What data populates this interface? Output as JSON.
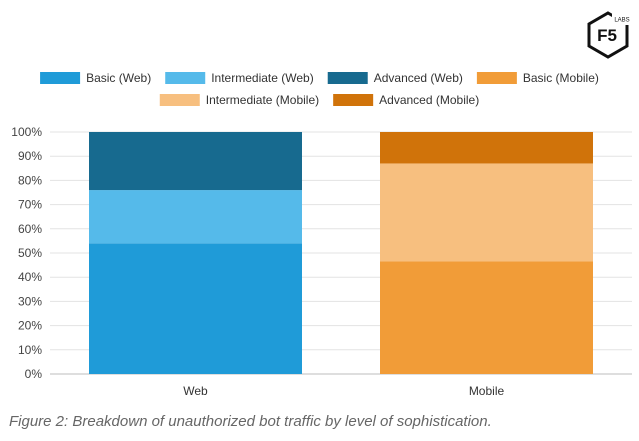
{
  "brand": {
    "logo_text": "F5",
    "logo_subtext": "LABS"
  },
  "chart_data": {
    "type": "bar",
    "stacked": true,
    "title": "",
    "xlabel": "",
    "ylabel": "",
    "ylim": [
      0,
      100
    ],
    "y_ticks": [
      "0%",
      "10%",
      "20%",
      "30%",
      "40%",
      "50%",
      "60%",
      "70%",
      "80%",
      "90%",
      "100%"
    ],
    "categories": [
      "Web",
      "Mobile"
    ],
    "series": [
      {
        "name": "Basic (Web)",
        "color": "#1f9bd8",
        "values": [
          54,
          0
        ]
      },
      {
        "name": "Intermediate (Web)",
        "color": "#55baea",
        "values": [
          22,
          0
        ]
      },
      {
        "name": "Advanced (Web)",
        "color": "#176a8f",
        "values": [
          24,
          0
        ]
      },
      {
        "name": "Basic (Mobile)",
        "color": "#f19c38",
        "values": [
          0,
          46.5
        ]
      },
      {
        "name": "Intermediate (Mobile)",
        "color": "#f7bf7f",
        "values": [
          0,
          40.5
        ]
      },
      {
        "name": "Advanced (Mobile)",
        "color": "#d0730a",
        "values": [
          0,
          13
        ]
      }
    ],
    "legend_position": "top",
    "grid": true
  },
  "caption": "Figure 2: Breakdown of unauthorized bot traffic by level of sophistication."
}
